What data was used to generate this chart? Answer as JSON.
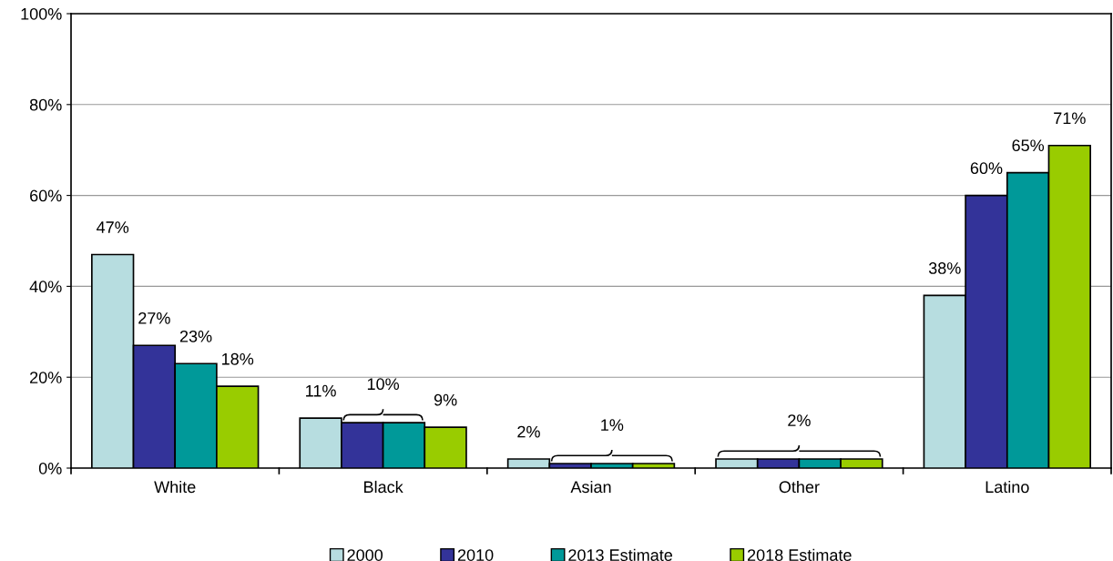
{
  "chart_data": {
    "type": "bar",
    "categories": [
      "White",
      "Black",
      "Asian",
      "Other",
      "Latino"
    ],
    "series": [
      {
        "name": "2000",
        "color": "#b7dde0",
        "values": [
          47,
          11,
          2,
          2,
          38
        ],
        "value_labels": [
          "47%",
          "11%",
          "2%",
          null,
          "38%"
        ]
      },
      {
        "name": "2010",
        "color": "#333399",
        "values": [
          27,
          10,
          1,
          2,
          60
        ],
        "value_labels": [
          "27%",
          "10%",
          "1%",
          "2%",
          "60%"
        ]
      },
      {
        "name": "2013 Estimate",
        "color": "#009999",
        "values": [
          23,
          10,
          1,
          2,
          65
        ],
        "value_labels": [
          "23%",
          null,
          null,
          null,
          "65%"
        ]
      },
      {
        "name": "2018 Estimate",
        "color": "#99cc00",
        "values": [
          18,
          9,
          1,
          2,
          71
        ],
        "value_labels": [
          "18%",
          "9%",
          null,
          null,
          "71%"
        ]
      }
    ],
    "ylim": [
      0,
      100
    ],
    "yticks": [
      {
        "value": 0,
        "label": "0%"
      },
      {
        "value": 20,
        "label": "20%"
      },
      {
        "value": 40,
        "label": "40%"
      },
      {
        "value": 60,
        "label": "60%"
      },
      {
        "value": 80,
        "label": "80%"
      },
      {
        "value": 100,
        "label": "100%"
      }
    ],
    "grid": "y",
    "legend": "bottom"
  }
}
